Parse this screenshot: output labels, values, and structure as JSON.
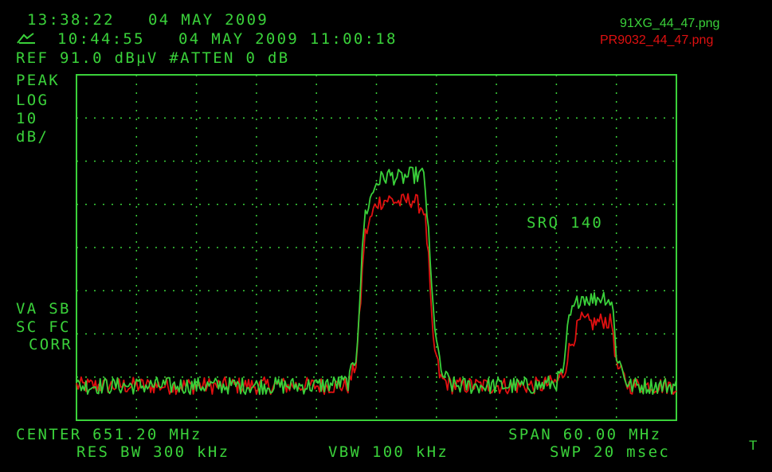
{
  "colors": {
    "green": "#3ad13a",
    "red": "#e01010",
    "background": "#000000",
    "grid": "#3ad13a"
  },
  "header": {
    "time1": "13:38:22",
    "date1": "04 MAY 2009",
    "time2": "10:44:55",
    "datetime2": "04 MAY 2009 11:00:18",
    "ref_line": "REF 91.0 dBµV #ATTEN 0 dB",
    "icon": "probe-icon"
  },
  "files": {
    "green_file": "91XG_44_47.png",
    "red_file": "PR9032_44_47.png"
  },
  "side_labels": {
    "peak": "PEAK",
    "log": "LOG",
    "ten": "10",
    "dbdiv": "dB/",
    "va_sb": "VA SB",
    "sc_fc": "SC FC",
    "corr": "CORR"
  },
  "annotation": "SRQ 140",
  "footer": {
    "center": "CENTER 651.20 MHz",
    "span": "SPAN 60.00 MHz",
    "res_bw": "RES BW 300 kHz",
    "vbw": "VBW 100 kHz",
    "swp": "SWP 20 msec",
    "corner": "T"
  },
  "chart_data": {
    "type": "line",
    "xlabel": "",
    "ylabel": "",
    "xlim": [
      621.2,
      681.2
    ],
    "ylim": [
      -9,
      91
    ],
    "grid": true,
    "x": [
      621.2,
      626.0,
      630.8,
      635.6,
      640.4,
      645.2,
      648.4,
      649.2,
      649.6,
      650.0,
      651.2,
      652.4,
      653.6,
      654.8,
      656.0,
      656.4,
      656.8,
      657.6,
      658.8,
      661.2,
      664.4,
      667.6,
      669.2,
      670.0,
      670.4,
      671.6,
      672.8,
      674.0,
      674.8,
      675.2,
      676.4,
      678.0,
      681.2
    ],
    "series": [
      {
        "name": "91XG_44_47.png",
        "color": "#3ad13a",
        "values": [
          1,
          1,
          1,
          1,
          1,
          1,
          2,
          10,
          30,
          50,
          60,
          62,
          61,
          62,
          62,
          45,
          25,
          5,
          1,
          1,
          1,
          1,
          2,
          6,
          20,
          27,
          26,
          27,
          25,
          10,
          1,
          1,
          1
        ]
      },
      {
        "name": "PR9032_44_47.png",
        "color": "#e01010",
        "values": [
          1,
          1,
          1,
          1,
          1,
          1,
          1,
          8,
          25,
          44,
          54,
          55,
          54,
          55,
          52,
          38,
          15,
          3,
          1,
          1,
          1,
          1,
          2,
          5,
          11,
          20,
          19,
          20,
          19,
          7,
          1,
          1,
          1
        ]
      }
    ]
  }
}
